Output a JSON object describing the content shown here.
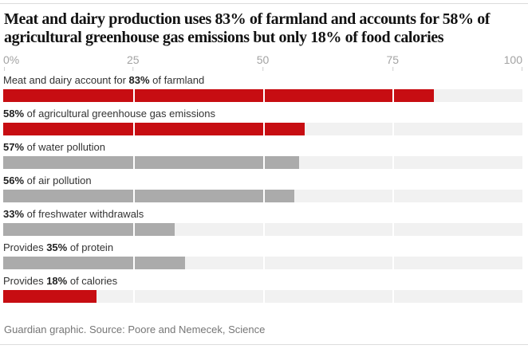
{
  "header": {
    "title_line1": "Meat and dairy production uses 83% of farmland and accounts for 58% of",
    "title_line2": "agricultural greenhouse gas emissions but only 18% of food calories"
  },
  "footer": {
    "credit": "Guardian graphic. Source: Poore and Nemecek, Science"
  },
  "colors": {
    "red": "#c70d12",
    "gray": "#ababab",
    "track": "#f1f1f1",
    "axis_text": "#a3a3a3",
    "rule": "#dcdcdc"
  },
  "chart_data": {
    "type": "bar",
    "orientation": "horizontal",
    "title": "Meat and dairy production uses 83% of farmland and accounts for 58% of agricultural greenhouse gas emissions but only 18% of food calories",
    "xlim": [
      0,
      100
    ],
    "x_ticks": [
      "0%",
      "25",
      "50",
      "75",
      "100"
    ],
    "gridlines_pct": [
      25,
      50,
      75
    ],
    "legend": "none",
    "rows": [
      {
        "label_prefix": "Meat and dairy account for ",
        "label_pct": "83%",
        "label_suffix": " of farmland",
        "value": 83,
        "color": "red"
      },
      {
        "label_prefix": "",
        "label_pct": "58%",
        "label_suffix": " of agricultural greenhouse gas emissions",
        "value": 58,
        "color": "red"
      },
      {
        "label_prefix": "",
        "label_pct": "57%",
        "label_suffix": " of water pollution",
        "value": 57,
        "color": "gray"
      },
      {
        "label_prefix": "",
        "label_pct": "56%",
        "label_suffix": " of air pollution",
        "value": 56,
        "color": "gray"
      },
      {
        "label_prefix": "",
        "label_pct": "33%",
        "label_suffix": " of freshwater withdrawals",
        "value": 33,
        "color": "gray"
      },
      {
        "label_prefix": "Provides ",
        "label_pct": "35%",
        "label_suffix": " of protein",
        "value": 35,
        "color": "gray"
      },
      {
        "label_prefix": "Provides ",
        "label_pct": "18%",
        "label_suffix": " of calories",
        "value": 18,
        "color": "red"
      }
    ]
  }
}
